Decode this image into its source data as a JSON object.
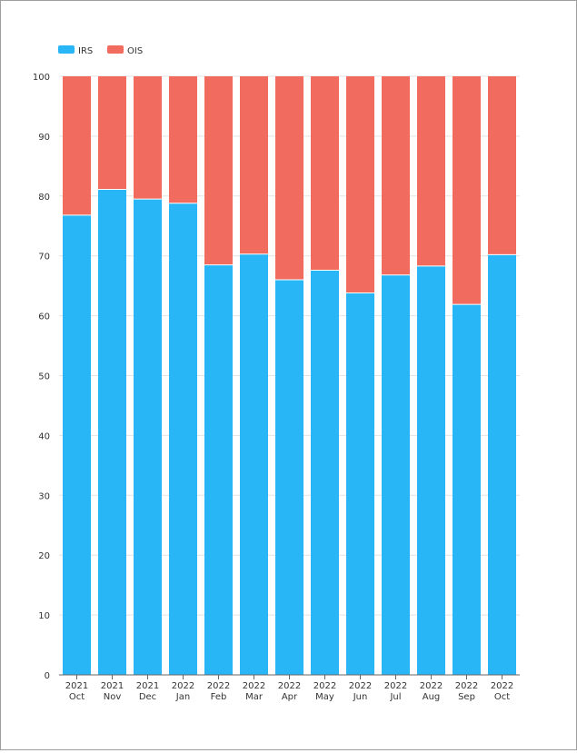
{
  "chart_data": {
    "type": "bar",
    "stacked": true,
    "title": "",
    "xlabel": "",
    "ylabel": "",
    "ylim": [
      0,
      100
    ],
    "yticks": [
      0,
      10,
      20,
      30,
      40,
      50,
      60,
      70,
      80,
      90,
      100
    ],
    "grid": true,
    "legend_position": "top-left",
    "categories": [
      {
        "year": "2021",
        "month": "Oct"
      },
      {
        "year": "2021",
        "month": "Nov"
      },
      {
        "year": "2021",
        "month": "Dec"
      },
      {
        "year": "2022",
        "month": "Jan"
      },
      {
        "year": "2022",
        "month": "Feb"
      },
      {
        "year": "2022",
        "month": "Mar"
      },
      {
        "year": "2022",
        "month": "Apr"
      },
      {
        "year": "2022",
        "month": "May"
      },
      {
        "year": "2022",
        "month": "Jun"
      },
      {
        "year": "2022",
        "month": "Jul"
      },
      {
        "year": "2022",
        "month": "Aug"
      },
      {
        "year": "2022",
        "month": "Sep"
      },
      {
        "year": "2022",
        "month": "Oct"
      }
    ],
    "series": [
      {
        "name": "IRS",
        "color": "#29b6f6",
        "values": [
          76.8,
          81.1,
          79.5,
          78.8,
          68.5,
          70.3,
          66.0,
          67.6,
          63.8,
          66.8,
          68.3,
          61.9,
          70.2
        ]
      },
      {
        "name": "OIS",
        "color": "#f26b5f",
        "values": [
          23.2,
          18.9,
          20.5,
          21.2,
          31.5,
          29.7,
          34.0,
          32.4,
          36.2,
          33.2,
          31.7,
          38.1,
          29.8
        ]
      }
    ]
  }
}
